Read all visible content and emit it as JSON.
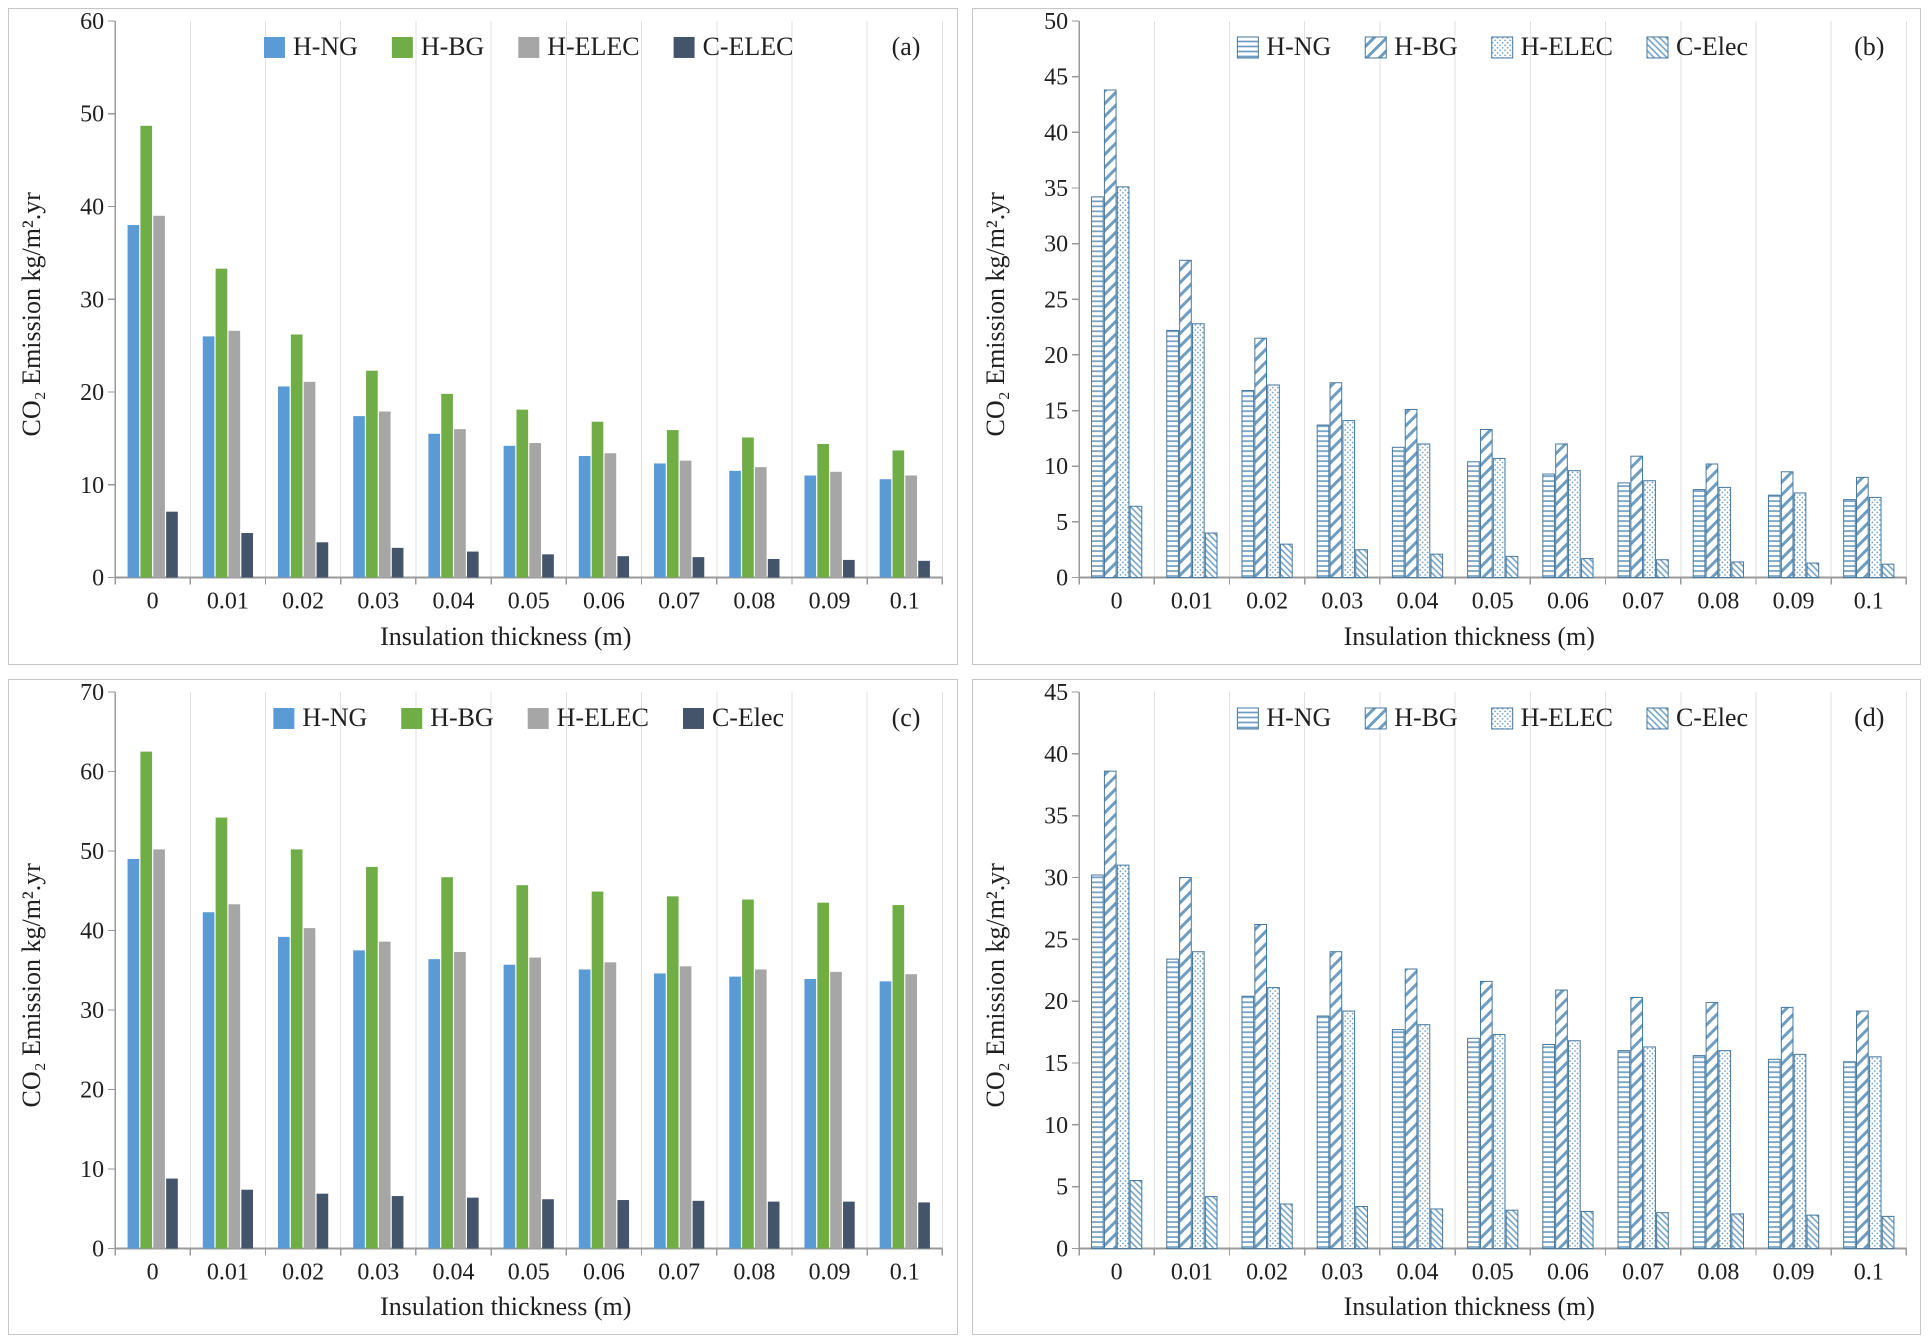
{
  "figure": {
    "background": "#ffffff",
    "axis_color": "#9a9a9a",
    "gridline_color": "#e2e2e2",
    "text_color": "#1f1f1f"
  },
  "chart_data": [
    {
      "type": "bar",
      "panel_label": "(a)",
      "title": "",
      "xlabel": "Insulation thickness (m)",
      "ylabel": "CO₂ Emission kg/m².yr",
      "categories": [
        "0",
        "0.01",
        "0.02",
        "0.03",
        "0.04",
        "0.05",
        "0.06",
        "0.07",
        "0.08",
        "0.09",
        "0.1"
      ],
      "ylim": [
        0,
        60
      ],
      "ytick_step": 10,
      "grid": "vertical-faint",
      "legend_position": "top-inside",
      "style": "solid",
      "series": [
        {
          "name": "H-NG",
          "color": "#5B9BD5",
          "values": [
            38.0,
            26.0,
            20.6,
            17.4,
            15.5,
            14.2,
            13.1,
            12.3,
            11.5,
            11.0,
            10.6
          ]
        },
        {
          "name": "H-BG",
          "color": "#70AD47",
          "values": [
            48.7,
            33.3,
            26.2,
            22.3,
            19.8,
            18.1,
            16.8,
            15.9,
            15.1,
            14.4,
            13.7
          ]
        },
        {
          "name": "H-ELEC",
          "color": "#A6A6A6",
          "values": [
            39.0,
            26.6,
            21.1,
            17.9,
            16.0,
            14.5,
            13.4,
            12.6,
            11.9,
            11.4,
            11.0
          ]
        },
        {
          "name": "C-ELEC",
          "color": "#44546A",
          "values": [
            7.1,
            4.8,
            3.8,
            3.2,
            2.8,
            2.5,
            2.3,
            2.2,
            2.0,
            1.9,
            1.8
          ]
        }
      ]
    },
    {
      "type": "bar",
      "panel_label": "(b)",
      "title": "",
      "xlabel": "Insulation thickness (m)",
      "ylabel": "CO₂ Emission kg/m².yr",
      "categories": [
        "0",
        "0.01",
        "0.02",
        "0.03",
        "0.04",
        "0.05",
        "0.06",
        "0.07",
        "0.08",
        "0.09",
        "0.1"
      ],
      "ylim": [
        0,
        50
      ],
      "ytick_step": 5,
      "grid": "vertical-faint",
      "legend_position": "top-inside",
      "style": "hatched",
      "bar_stroke": "#47789f",
      "series": [
        {
          "name": "H-NG",
          "pattern": "hlines",
          "values": [
            34.2,
            22.2,
            16.8,
            13.7,
            11.7,
            10.4,
            9.3,
            8.5,
            7.9,
            7.4,
            7.0
          ]
        },
        {
          "name": "H-BG",
          "pattern": "diag",
          "values": [
            43.8,
            28.5,
            21.5,
            17.5,
            15.1,
            13.3,
            12.0,
            10.9,
            10.2,
            9.5,
            9.0
          ]
        },
        {
          "name": "H-ELEC",
          "pattern": "dots",
          "values": [
            35.1,
            22.8,
            17.3,
            14.1,
            12.0,
            10.7,
            9.6,
            8.7,
            8.1,
            7.6,
            7.2
          ]
        },
        {
          "name": "C-Elec",
          "pattern": "fdiag",
          "values": [
            6.4,
            4.0,
            3.0,
            2.5,
            2.1,
            1.9,
            1.7,
            1.6,
            1.4,
            1.3,
            1.2
          ]
        }
      ]
    },
    {
      "type": "bar",
      "panel_label": "(c)",
      "title": "",
      "xlabel": "Insulation thickness (m)",
      "ylabel": "CO₂ Emission kg/m².yr",
      "categories": [
        "0",
        "0.01",
        "0.02",
        "0.03",
        "0.04",
        "0.05",
        "0.06",
        "0.07",
        "0.08",
        "0.09",
        "0.1"
      ],
      "ylim": [
        0,
        70
      ],
      "ytick_step": 10,
      "grid": "vertical-faint",
      "legend_position": "top-inside",
      "style": "solid",
      "series": [
        {
          "name": "H-NG",
          "color": "#5B9BD5",
          "values": [
            49.0,
            42.3,
            39.2,
            37.5,
            36.4,
            35.7,
            35.1,
            34.6,
            34.2,
            33.9,
            33.6
          ]
        },
        {
          "name": "H-BG",
          "color": "#70AD47",
          "values": [
            62.5,
            54.2,
            50.2,
            48.0,
            46.7,
            45.7,
            44.9,
            44.3,
            43.9,
            43.5,
            43.2
          ]
        },
        {
          "name": "H-ELEC",
          "color": "#A6A6A6",
          "values": [
            50.2,
            43.3,
            40.3,
            38.6,
            37.3,
            36.6,
            36.0,
            35.5,
            35.1,
            34.8,
            34.5
          ]
        },
        {
          "name": "C-Elec",
          "color": "#44546A",
          "values": [
            8.8,
            7.4,
            6.9,
            6.6,
            6.4,
            6.2,
            6.1,
            6.0,
            5.9,
            5.9,
            5.8
          ]
        }
      ]
    },
    {
      "type": "bar",
      "panel_label": "(d)",
      "title": "",
      "xlabel": "Insulation thickness (m)",
      "ylabel": "CO₂ Emission kg/m².yr",
      "categories": [
        "0",
        "0.01",
        "0.02",
        "0.03",
        "0.04",
        "0.05",
        "0.06",
        "0.07",
        "0.08",
        "0.09",
        "0.1"
      ],
      "ylim": [
        0,
        45
      ],
      "ytick_step": 5,
      "grid": "vertical-faint",
      "legend_position": "top-inside",
      "style": "hatched",
      "bar_stroke": "#47789f",
      "series": [
        {
          "name": "H-NG",
          "pattern": "hlines",
          "values": [
            30.2,
            23.4,
            20.4,
            18.8,
            17.7,
            17.0,
            16.5,
            16.0,
            15.6,
            15.3,
            15.1
          ]
        },
        {
          "name": "H-BG",
          "pattern": "diag",
          "values": [
            38.6,
            30.0,
            26.2,
            24.0,
            22.6,
            21.6,
            20.9,
            20.3,
            19.9,
            19.5,
            19.2
          ]
        },
        {
          "name": "H-ELEC",
          "pattern": "dots",
          "values": [
            31.0,
            24.0,
            21.1,
            19.2,
            18.1,
            17.3,
            16.8,
            16.3,
            16.0,
            15.7,
            15.5
          ]
        },
        {
          "name": "C-Elec",
          "pattern": "fdiag",
          "values": [
            5.5,
            4.2,
            3.6,
            3.4,
            3.2,
            3.1,
            3.0,
            2.9,
            2.8,
            2.7,
            2.6
          ]
        }
      ]
    }
  ]
}
